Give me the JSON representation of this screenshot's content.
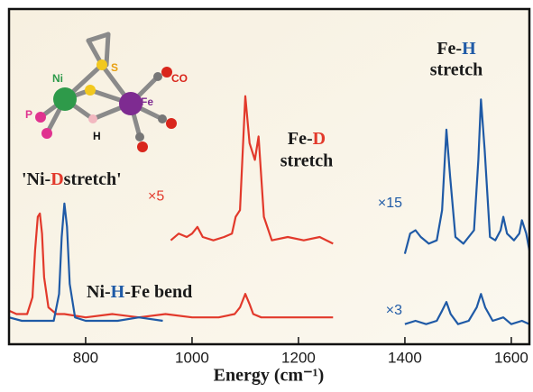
{
  "chart_data": {
    "type": "line",
    "x_label": "Energy (cm⁻¹)",
    "xlim": [
      656,
      1634
    ],
    "xticks": [
      800,
      1000,
      1200,
      1400,
      1600
    ],
    "ylim": [
      0,
      100
    ],
    "series": [
      {
        "color": "#e2392b",
        "x": [
          656,
          670,
          690,
          700,
          705,
          710,
          714,
          718,
          722,
          730,
          745,
          760,
          800,
          850,
          900,
          950,
          1000,
          1050,
          1080,
          1090,
          1100,
          1108,
          1115,
          1130,
          1180,
          1230,
          1265
        ],
        "values": [
          10,
          9,
          9,
          14,
          28,
          38,
          39,
          33,
          20,
          11,
          9,
          9,
          8,
          9,
          8,
          9,
          8,
          8,
          9,
          11,
          15,
          12,
          9,
          8,
          8,
          8,
          8
        ]
      },
      {
        "color": "#1f5aa6",
        "x": [
          656,
          680,
          700,
          720,
          740,
          750,
          755,
          760,
          765,
          770,
          780,
          800,
          830,
          860,
          900,
          945
        ],
        "values": [
          8,
          7,
          7,
          7,
          7,
          15,
          32,
          42,
          35,
          18,
          8,
          7,
          7,
          7,
          8,
          7
        ]
      },
      {
        "color": "#1f5aa6",
        "label": "×3",
        "x": [
          1400,
          1420,
          1440,
          1460,
          1470,
          1478,
          1486,
          1500,
          1520,
          1535,
          1543,
          1551,
          1565,
          1585,
          1600,
          1620,
          1634
        ],
        "values": [
          6,
          7,
          6,
          7,
          10,
          12.6,
          9,
          6,
          7,
          11,
          15,
          11,
          7,
          8,
          6,
          7,
          6
        ]
      },
      {
        "color": "#e2392b",
        "label": "×5",
        "x": [
          960,
          975,
          990,
          1000,
          1010,
          1020,
          1040,
          1060,
          1075,
          1082,
          1090,
          1100,
          1108,
          1118,
          1125,
          1135,
          1150,
          1180,
          1210,
          1240,
          1265
        ],
        "values": [
          31,
          33,
          32,
          33,
          35,
          32,
          31,
          32,
          33,
          38,
          40,
          74,
          60,
          55,
          62,
          38,
          31,
          32,
          31,
          32,
          30
        ]
      },
      {
        "color": "#1f5aa6",
        "label": "×15",
        "x": [
          1400,
          1410,
          1420,
          1430,
          1445,
          1460,
          1470,
          1478,
          1485,
          1495,
          1510,
          1530,
          1538,
          1543,
          1550,
          1560,
          1570,
          1580,
          1585,
          1592,
          1605,
          1615,
          1620,
          1628,
          1634
        ],
        "values": [
          27,
          33,
          34,
          32,
          30,
          31,
          40,
          64,
          50,
          32,
          30,
          34,
          55,
          73,
          58,
          32,
          31,
          34,
          38,
          33,
          31,
          33,
          37,
          33,
          28
        ]
      }
    ],
    "annotations": [
      [
        "'Ni-",
        "D",
        "stretch'"
      ],
      [
        "Fe-",
        "D"
      ],
      [
        "stretch"
      ],
      [
        "Fe-",
        "H"
      ],
      [
        "stretch"
      ],
      [
        "Ni-",
        "H",
        "-Fe bend"
      ]
    ],
    "molecule_labels": [
      "Ni",
      "S",
      "CO",
      "Fe",
      "P",
      "H"
    ]
  }
}
